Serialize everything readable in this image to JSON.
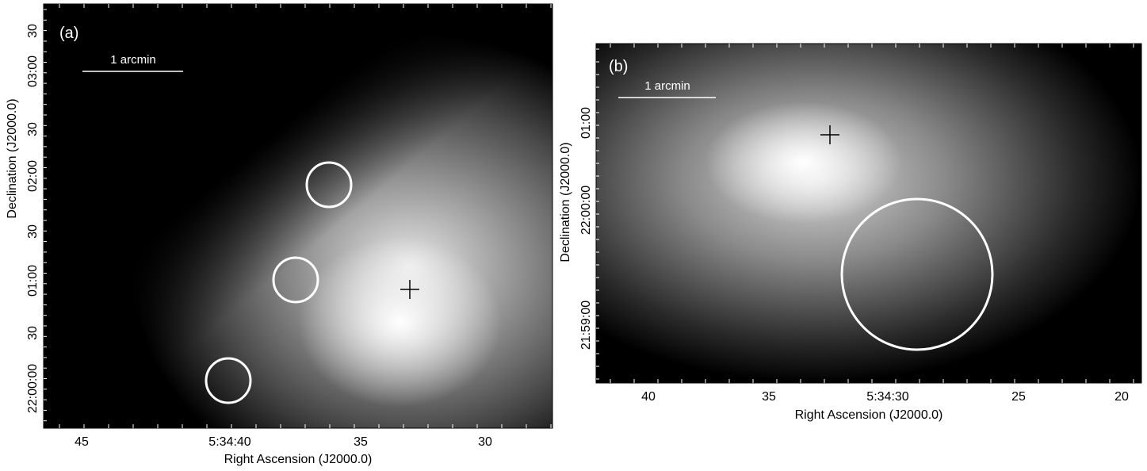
{
  "panels": [
    {
      "label": "(a)",
      "scale_bar": "1 arcmin",
      "x_axis_title": "Right Ascension (J2000.0)",
      "y_axis_title": "Declination (J2000.0)",
      "x_ticks": [
        "45",
        "5:34:40",
        "35",
        "30"
      ],
      "y_ticks": [
        "30",
        "03:00",
        "30",
        "02:00",
        "30",
        "01:00",
        "30",
        "22:00:00"
      ],
      "markers": {
        "circles": 3,
        "crosses": 1
      }
    },
    {
      "label": "(b)",
      "scale_bar": "1 arcmin",
      "x_axis_title": "Right Ascension (J2000.0)",
      "y_axis_title": "Declination (J2000.0)",
      "x_ticks": [
        "40",
        "35",
        "5:34:30",
        "25",
        "20"
      ],
      "y_ticks": [
        "01:00",
        "22:00:00",
        "21:59:00"
      ],
      "markers": {
        "circles": 1,
        "crosses": 1
      }
    }
  ],
  "colors": {
    "background": "#000000",
    "markers": "#ffffff",
    "axes": "#000000"
  }
}
